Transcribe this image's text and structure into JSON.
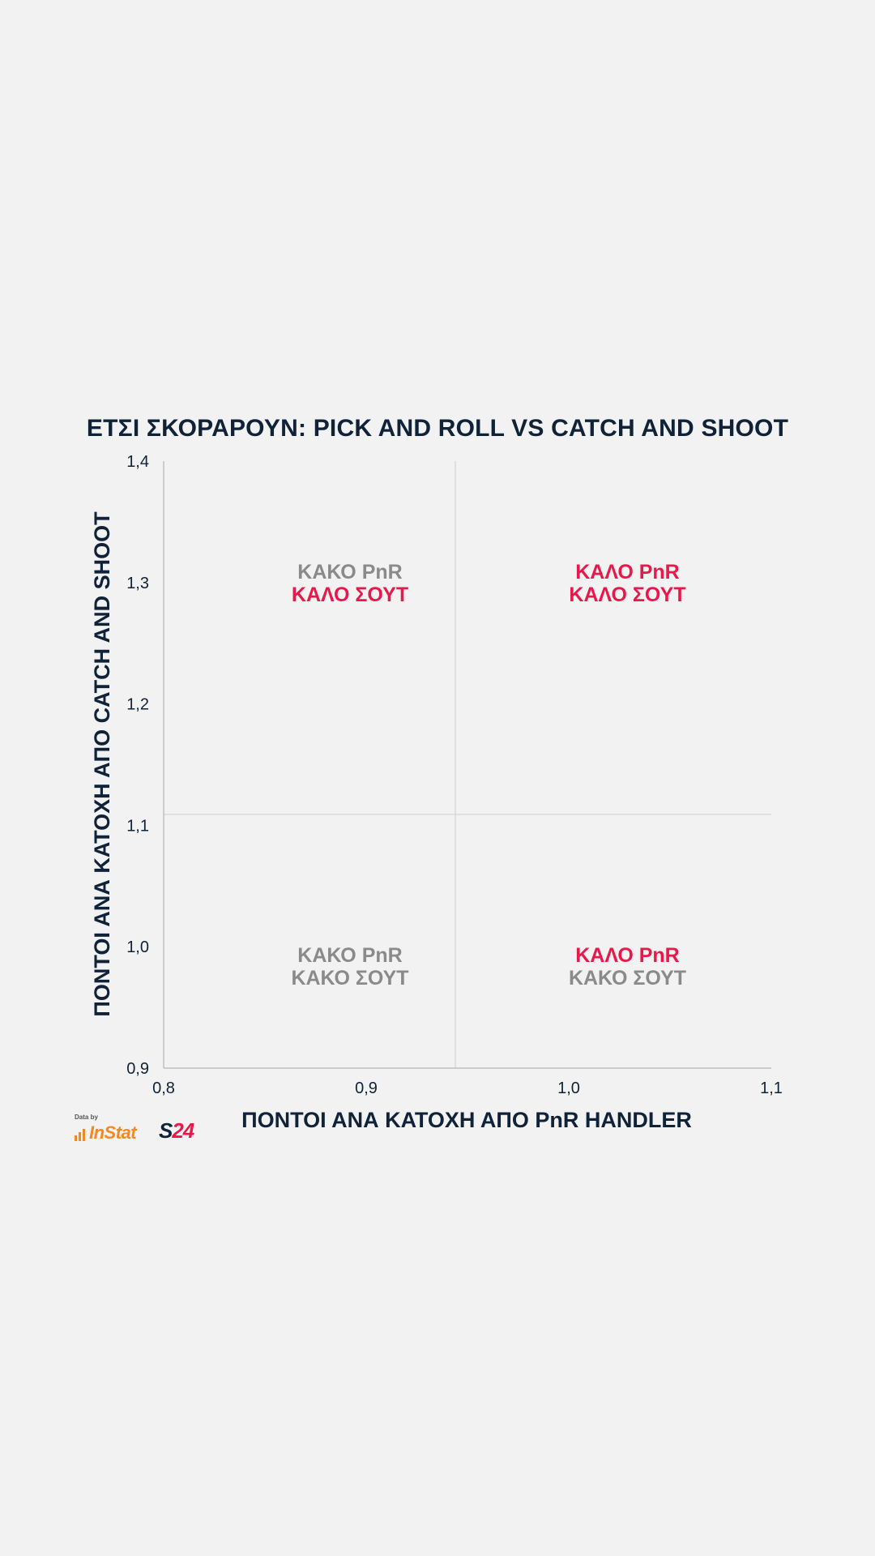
{
  "header": {
    "title_bold": "ΕΤΣΙ ΣΚΟΡΑΡΟΥΝ:",
    "title_rest": "PICK AND ROLL VS CATCH AND SHOOT"
  },
  "chart_data": {
    "type": "scatter",
    "title": "ΕΤΣΙ ΣΚΟΡΑΡΟΥΝ: PICK AND ROLL VS CATCH AND SHOOT",
    "xlabel": "ΠΟΝΤΟΙ ΑΝΑ ΚΑΤΟΧΗ ΑΠΟ PnR HANDLER",
    "ylabel": "ΠΟΝΤΟΙ ΑΝΑ ΚΑΤΟΧΗ ΑΠΟ CATCH AND SHOOT",
    "xlim": [
      0.8,
      1.1
    ],
    "ylim": [
      0.9,
      1.4
    ],
    "x_ticks": [
      0.8,
      0.9,
      1.0,
      1.1
    ],
    "x_tick_labels": [
      "0,8",
      "0,9",
      "1,0",
      "1,1"
    ],
    "y_ticks": [
      0.9,
      1.0,
      1.1,
      1.2,
      1.3,
      1.4
    ],
    "y_tick_labels": [
      "0,9",
      "1,0",
      "1,1",
      "1,2",
      "1,3",
      "1,4"
    ],
    "grid": false,
    "reference_lines": {
      "x": 0.944,
      "y": 1.109
    },
    "quadrants": [
      {
        "position": "top-left",
        "x": 0.892,
        "y": 1.3,
        "line1": "ΚΑΚΟ PnR",
        "line1_color": "#8a8a8a",
        "line2": "ΚΑΛΟ ΣΟΥΤ",
        "line2_color": "#e8194a"
      },
      {
        "position": "top-right",
        "x": 1.029,
        "y": 1.3,
        "line1": "ΚΑΛΟ PnR",
        "line1_color": "#e8194a",
        "line2": "ΚΑΛΟ ΣΟΥΤ",
        "line2_color": "#e8194a"
      },
      {
        "position": "bottom-left",
        "x": 0.892,
        "y": 0.984,
        "line1": "ΚΑΚΟ PnR",
        "line1_color": "#8a8a8a",
        "line2": "ΚΑΚΟ ΣΟΥΤ",
        "line2_color": "#8a8a8a"
      },
      {
        "position": "bottom-right",
        "x": 1.029,
        "y": 0.984,
        "line1": "ΚΑΛΟ PnR",
        "line1_color": "#e8194a",
        "line2": "ΚΑΚΟ ΣΟΥΤ",
        "line2_color": "#8a8a8a"
      }
    ],
    "points": []
  },
  "colors": {
    "background": "#f2f2f2",
    "text_dark": "#0f2238",
    "accent": "#e8194a",
    "muted": "#8a8a8a",
    "axis": "#b5b5b5",
    "instat_orange": "#f5891f"
  },
  "footer": {
    "data_by": "Data by",
    "instat": "InStat",
    "s24_s": "S",
    "s24_num": "24"
  }
}
